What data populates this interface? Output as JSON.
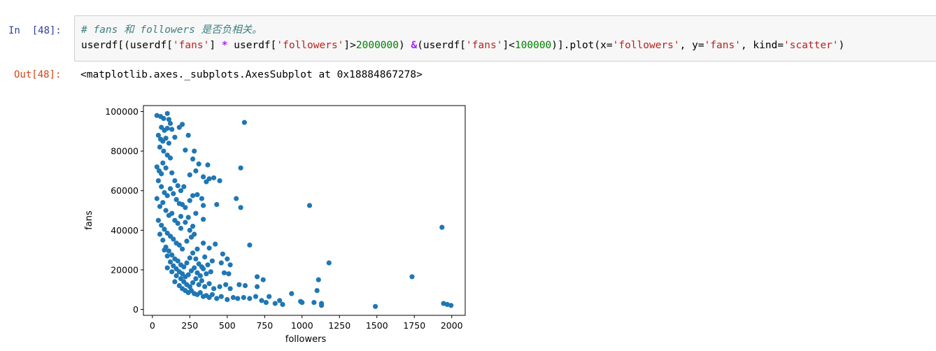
{
  "cell": {
    "in_prompt": "In  [48]:",
    "out_prompt": "Out[48]:",
    "code": {
      "line1_comment": "# fans 和 followers 是否负相关。",
      "line2_parts": [
        {
          "text": "userdf[(userdf[",
          "cls": ""
        },
        {
          "text": "'fans'",
          "cls": "st"
        },
        {
          "text": "] ",
          "cls": ""
        },
        {
          "text": "*",
          "cls": "op"
        },
        {
          "text": " userdf[",
          "cls": ""
        },
        {
          "text": "'followers'",
          "cls": "st"
        },
        {
          "text": "]>",
          "cls": ""
        },
        {
          "text": "2000000",
          "cls": "nm"
        },
        {
          "text": ") ",
          "cls": ""
        },
        {
          "text": "&",
          "cls": "op"
        },
        {
          "text": "(userdf[",
          "cls": ""
        },
        {
          "text": "'fans'",
          "cls": "st"
        },
        {
          "text": "]<",
          "cls": ""
        },
        {
          "text": "100000",
          "cls": "nm"
        },
        {
          "text": ")].plot(x=",
          "cls": ""
        },
        {
          "text": "'followers'",
          "cls": "st"
        },
        {
          "text": ", y=",
          "cls": ""
        },
        {
          "text": "'fans'",
          "cls": "st"
        },
        {
          "text": ", kind=",
          "cls": ""
        },
        {
          "text": "'scatter'",
          "cls": "st"
        },
        {
          "text": ")",
          "cls": ""
        }
      ]
    },
    "output_text": "<matplotlib.axes._subplots.AxesSubplot at 0x18884867278>"
  },
  "colors": {
    "marker": "#1f77b4",
    "axes": "#000000"
  },
  "chart_data": {
    "type": "scatter",
    "xlabel": "followers",
    "ylabel": "fans",
    "xlim": [
      -60,
      2090
    ],
    "ylim": [
      -3000,
      103000
    ],
    "x_ticks": [
      0,
      250,
      500,
      750,
      1000,
      1250,
      1500,
      1750,
      2000
    ],
    "x_tick_labels": [
      "0",
      "250",
      "500",
      "750",
      "1000",
      "1250",
      "1500",
      "1750",
      "2000"
    ],
    "y_ticks": [
      0,
      20000,
      40000,
      60000,
      80000,
      100000
    ],
    "y_tick_labels": [
      "0",
      "20000",
      "40000",
      "60000",
      "80000",
      "100000"
    ],
    "grid": false,
    "points": [
      [
        30,
        98000
      ],
      [
        55,
        97500
      ],
      [
        75,
        96500
      ],
      [
        100,
        99000
      ],
      [
        110,
        96000
      ],
      [
        120,
        94000
      ],
      [
        60,
        92000
      ],
      [
        80,
        90500
      ],
      [
        100,
        91500
      ],
      [
        130,
        91000
      ],
      [
        180,
        92000
      ],
      [
        200,
        93500
      ],
      [
        240,
        88000
      ],
      [
        615,
        94500
      ],
      [
        40,
        88000
      ],
      [
        55,
        86000
      ],
      [
        70,
        85000
      ],
      [
        90,
        86500
      ],
      [
        150,
        87000
      ],
      [
        110,
        84000
      ],
      [
        50,
        82000
      ],
      [
        75,
        80000
      ],
      [
        100,
        78000
      ],
      [
        120,
        76500
      ],
      [
        220,
        80500
      ],
      [
        270,
        76000
      ],
      [
        280,
        80000
      ],
      [
        310,
        73500
      ],
      [
        370,
        73000
      ],
      [
        590,
        71500
      ],
      [
        30,
        72000
      ],
      [
        45,
        70000
      ],
      [
        60,
        68500
      ],
      [
        70,
        74000
      ],
      [
        90,
        71500
      ],
      [
        130,
        69000
      ],
      [
        150,
        65000
      ],
      [
        170,
        62500
      ],
      [
        190,
        60000
      ],
      [
        210,
        62000
      ],
      [
        250,
        68000
      ],
      [
        290,
        70000
      ],
      [
        340,
        67000
      ],
      [
        360,
        64500
      ],
      [
        380,
        66000
      ],
      [
        410,
        66500
      ],
      [
        450,
        65000
      ],
      [
        40,
        65000
      ],
      [
        60,
        62000
      ],
      [
        80,
        59000
      ],
      [
        100,
        57500
      ],
      [
        120,
        61000
      ],
      [
        140,
        58500
      ],
      [
        160,
        55500
      ],
      [
        180,
        53500
      ],
      [
        200,
        53000
      ],
      [
        220,
        51500
      ],
      [
        250,
        55000
      ],
      [
        270,
        57500
      ],
      [
        300,
        58000
      ],
      [
        330,
        56000
      ],
      [
        340,
        52500
      ],
      [
        430,
        53000
      ],
      [
        560,
        56000
      ],
      [
        590,
        51500
      ],
      [
        1050,
        52500
      ],
      [
        30,
        56000
      ],
      [
        50,
        52000
      ],
      [
        70,
        54000
      ],
      [
        90,
        50000
      ],
      [
        110,
        47500
      ],
      [
        130,
        48500
      ],
      [
        150,
        45000
      ],
      [
        170,
        43500
      ],
      [
        190,
        47000
      ],
      [
        220,
        44000
      ],
      [
        240,
        46500
      ],
      [
        270,
        42000
      ],
      [
        290,
        48500
      ],
      [
        340,
        45500
      ],
      [
        250,
        40000
      ],
      [
        190,
        41000
      ],
      [
        40,
        45000
      ],
      [
        60,
        42500
      ],
      [
        80,
        40500
      ],
      [
        100,
        38500
      ],
      [
        120,
        37000
      ],
      [
        140,
        35500
      ],
      [
        160,
        33500
      ],
      [
        180,
        32500
      ],
      [
        200,
        30500
      ],
      [
        230,
        34500
      ],
      [
        260,
        36500
      ],
      [
        280,
        38000
      ],
      [
        300,
        30500
      ],
      [
        340,
        33500
      ],
      [
        380,
        31000
      ],
      [
        420,
        33000
      ],
      [
        470,
        28000
      ],
      [
        650,
        32500
      ],
      [
        1935,
        41500
      ],
      [
        50,
        38000
      ],
      [
        70,
        35000
      ],
      [
        90,
        31500
      ],
      [
        110,
        29500
      ],
      [
        130,
        27500
      ],
      [
        150,
        25500
      ],
      [
        170,
        24500
      ],
      [
        190,
        22500
      ],
      [
        210,
        21500
      ],
      [
        230,
        23500
      ],
      [
        250,
        26000
      ],
      [
        270,
        28500
      ],
      [
        290,
        25500
      ],
      [
        310,
        23000
      ],
      [
        330,
        21500
      ],
      [
        350,
        26500
      ],
      [
        370,
        22500
      ],
      [
        400,
        24500
      ],
      [
        460,
        23500
      ],
      [
        500,
        25500
      ],
      [
        520,
        22500
      ],
      [
        1180,
        23500
      ],
      [
        80,
        30000
      ],
      [
        100,
        27000
      ],
      [
        120,
        24000
      ],
      [
        140,
        22000
      ],
      [
        160,
        20500
      ],
      [
        180,
        19000
      ],
      [
        200,
        18000
      ],
      [
        220,
        16500
      ],
      [
        240,
        17500
      ],
      [
        260,
        19500
      ],
      [
        280,
        21000
      ],
      [
        300,
        18500
      ],
      [
        320,
        17000
      ],
      [
        340,
        20500
      ],
      [
        360,
        18000
      ],
      [
        390,
        19000
      ],
      [
        480,
        18500
      ],
      [
        510,
        18000
      ],
      [
        700,
        16500
      ],
      [
        740,
        15000
      ],
      [
        1110,
        15000
      ],
      [
        1735,
        16500
      ],
      [
        100,
        21000
      ],
      [
        130,
        19000
      ],
      [
        160,
        17000
      ],
      [
        190,
        15500
      ],
      [
        210,
        14000
      ],
      [
        230,
        12500
      ],
      [
        250,
        11500
      ],
      [
        270,
        13500
      ],
      [
        290,
        15500
      ],
      [
        310,
        12500
      ],
      [
        330,
        14500
      ],
      [
        350,
        11500
      ],
      [
        380,
        13000
      ],
      [
        410,
        10500
      ],
      [
        450,
        11500
      ],
      [
        490,
        12500
      ],
      [
        520,
        10500
      ],
      [
        580,
        12500
      ],
      [
        620,
        12000
      ],
      [
        700,
        11500
      ],
      [
        780,
        6500
      ],
      [
        150,
        14000
      ],
      [
        180,
        12000
      ],
      [
        200,
        10500
      ],
      [
        220,
        9500
      ],
      [
        240,
        8500
      ],
      [
        260,
        9500
      ],
      [
        280,
        8000
      ],
      [
        300,
        7500
      ],
      [
        320,
        8500
      ],
      [
        340,
        6500
      ],
      [
        360,
        7000
      ],
      [
        380,
        6000
      ],
      [
        400,
        7500
      ],
      [
        430,
        5500
      ],
      [
        460,
        6500
      ],
      [
        500,
        5000
      ],
      [
        540,
        6000
      ],
      [
        570,
        5500
      ],
      [
        610,
        6000
      ],
      [
        650,
        5500
      ],
      [
        690,
        6500
      ],
      [
        730,
        4500
      ],
      [
        760,
        3500
      ],
      [
        820,
        3000
      ],
      [
        850,
        4500
      ],
      [
        870,
        2500
      ],
      [
        930,
        8000
      ],
      [
        990,
        4000
      ],
      [
        1000,
        3500
      ],
      [
        1080,
        3500
      ],
      [
        1100,
        9500
      ],
      [
        1130,
        3000
      ],
      [
        1130,
        2000
      ],
      [
        1490,
        1500
      ],
      [
        1945,
        3000
      ],
      [
        1970,
        2500
      ],
      [
        1995,
        2000
      ]
    ]
  }
}
